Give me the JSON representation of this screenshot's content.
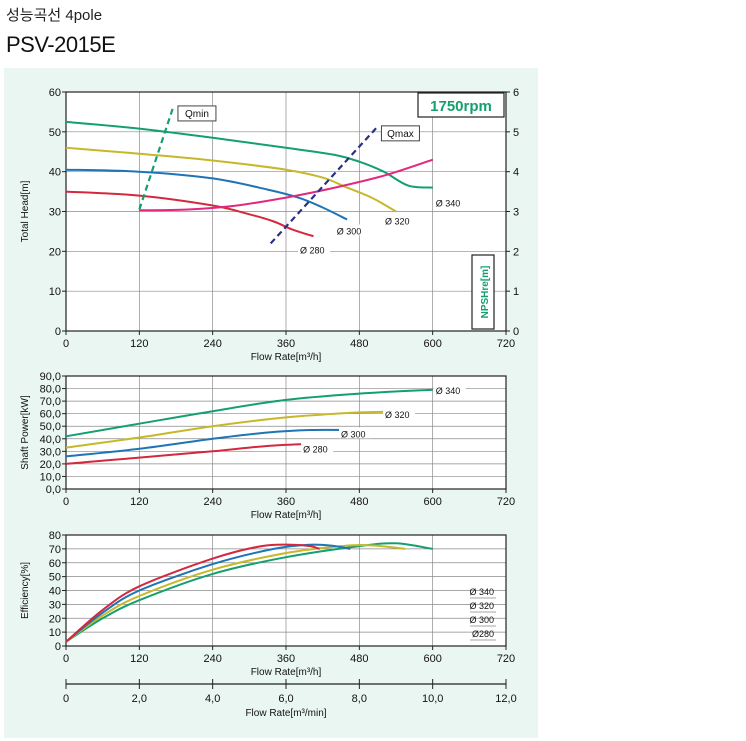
{
  "header": {
    "title": "성능곡선 4pole",
    "model": "PSV-2015E"
  },
  "colors": {
    "d340": "#14a06e",
    "d320": "#c7b82b",
    "d300": "#1f74b6",
    "d280": "#d4283f",
    "npsh": "#e0287e",
    "qmin": "#14a06e",
    "qmax": "#2a2f86"
  },
  "chart_data": [
    {
      "id": "head",
      "type": "line",
      "ylabel": "Total Head[m]",
      "xlabel": "Flow Rate[m³/h]",
      "y2label": "NPSHre[m]",
      "speed_label": "1750rpm",
      "xlim": [
        0,
        720
      ],
      "xticks": [
        0,
        120,
        240,
        360,
        480,
        600,
        720
      ],
      "ylim": [
        0,
        60
      ],
      "yticks": [
        0,
        10,
        20,
        30,
        40,
        50,
        60
      ],
      "y2lim": [
        0,
        6
      ],
      "y2ticks": [
        0,
        1,
        2,
        3,
        4,
        5,
        6
      ],
      "grid": true,
      "series": [
        {
          "name": "Ø 340",
          "color_key": "d340",
          "x": [
            0,
            120,
            240,
            360,
            440,
            480,
            520,
            560,
            600
          ],
          "y": [
            52.5,
            50.8,
            48.5,
            46.0,
            44.2,
            42.5,
            40.0,
            36.5,
            36.0
          ]
        },
        {
          "name": "Ø 320",
          "color_key": "d320",
          "x": [
            0,
            120,
            240,
            360,
            420,
            460,
            500,
            540
          ],
          "y": [
            46.0,
            44.5,
            42.8,
            40.5,
            38.5,
            36.0,
            33.5,
            30.0
          ]
        },
        {
          "name": "Ø 300",
          "color_key": "d300",
          "x": [
            0,
            120,
            240,
            330,
            380,
            420,
            460
          ],
          "y": [
            40.5,
            40.0,
            38.3,
            35.5,
            33.5,
            31.0,
            28.0
          ]
        },
        {
          "name": "Ø 280",
          "color_key": "d280",
          "x": [
            0,
            120,
            240,
            300,
            340,
            370,
            405
          ],
          "y": [
            35.0,
            34.0,
            31.5,
            29.3,
            27.5,
            25.5,
            23.8
          ]
        }
      ],
      "npsh": {
        "name": "NPSHre",
        "color_key": "npsh",
        "x": [
          120,
          200,
          280,
          360,
          440,
          520,
          600
        ],
        "y": [
          3.03,
          3.05,
          3.15,
          3.35,
          3.6,
          3.9,
          4.3
        ]
      },
      "limits": [
        {
          "label": "Qmin",
          "color_key": "qmin",
          "x": [
            120,
            175
          ],
          "y": [
            30.5,
            56.0
          ]
        },
        {
          "label": "Qmax",
          "color_key": "qmax",
          "x": [
            335,
            508
          ],
          "y": [
            22.0,
            51.0
          ]
        }
      ],
      "curve_labels": [
        {
          "text": "Ø 340",
          "x": 605,
          "y": 32
        },
        {
          "text": "Ø 320",
          "x": 522,
          "y": 27.5
        },
        {
          "text": "Ø 300",
          "x": 443,
          "y": 25.0
        },
        {
          "text": "Ø 280",
          "x": 383,
          "y": 20.2
        }
      ]
    },
    {
      "id": "power",
      "type": "line",
      "ylabel": "Shaft Power[kW]",
      "xlabel": "Flow Rate[m³/h]",
      "xlim": [
        0,
        720
      ],
      "xticks": [
        0,
        120,
        240,
        360,
        480,
        600,
        720
      ],
      "ylim": [
        0,
        90
      ],
      "yticks": [
        "0,0",
        "10,0",
        "20,0",
        "30,0",
        "40,0",
        "50,0",
        "60,0",
        "70,0",
        "80,0",
        "90,0"
      ],
      "grid": true,
      "series": [
        {
          "name": "Ø 340",
          "color_key": "d340",
          "x": [
            0,
            120,
            240,
            360,
            480,
            600
          ],
          "y": [
            42,
            52,
            62,
            71,
            76,
            79
          ]
        },
        {
          "name": "Ø 320",
          "color_key": "d320",
          "x": [
            0,
            120,
            240,
            360,
            480,
            540
          ],
          "y": [
            33,
            41,
            50,
            57,
            61,
            61.5
          ]
        },
        {
          "name": "Ø 300",
          "color_key": "d300",
          "x": [
            0,
            120,
            240,
            330,
            400,
            470
          ],
          "y": [
            26,
            32,
            40,
            45,
            47,
            47
          ]
        },
        {
          "name": "Ø 280",
          "color_key": "d280",
          "x": [
            0,
            120,
            240,
            300,
            350,
            410
          ],
          "y": [
            20,
            25,
            30,
            33,
            35,
            36
          ]
        }
      ],
      "curve_labels": [
        {
          "text": "Ø 340",
          "x": 605,
          "y": 78
        },
        {
          "text": "Ø 320",
          "x": 522,
          "y": 59
        },
        {
          "text": "Ø 300",
          "x": 450,
          "y": 43.5
        },
        {
          "text": "Ø 280",
          "x": 388,
          "y": 31.5
        }
      ]
    },
    {
      "id": "efficiency",
      "type": "line",
      "ylabel": "Efficiency[%]",
      "xlabel": "Flow Rate[m³/h]",
      "xlim": [
        0,
        720
      ],
      "xticks": [
        0,
        120,
        240,
        360,
        480,
        600,
        720
      ],
      "ylim": [
        0,
        80
      ],
      "yticks": [
        0,
        10,
        20,
        30,
        40,
        50,
        60,
        70,
        80
      ],
      "grid": true,
      "series": [
        {
          "name": "Ø 340",
          "color_key": "d340",
          "x": [
            0,
            60,
            120,
            240,
            360,
            480,
            540,
            600
          ],
          "y": [
            3,
            20,
            33,
            52,
            64,
            72,
            74,
            70
          ]
        },
        {
          "name": "Ø 320",
          "color_key": "d320",
          "x": [
            0,
            60,
            120,
            240,
            360,
            450,
            500,
            555
          ],
          "y": [
            3,
            22,
            36,
            55,
            67,
            72,
            72.5,
            70
          ]
        },
        {
          "name": "Ø 300",
          "color_key": "d300",
          "x": [
            0,
            60,
            120,
            240,
            340,
            400,
            440,
            465
          ],
          "y": [
            3,
            24,
            40,
            59,
            70,
            73,
            72,
            70
          ]
        },
        {
          "name": "Ø 280",
          "color_key": "d280",
          "x": [
            0,
            60,
            120,
            240,
            320,
            370,
            400,
            415
          ],
          "y": [
            3,
            26,
            43,
            63,
            72,
            73,
            72,
            70
          ]
        }
      ],
      "legend": [
        "Ø 340",
        "Ø 320",
        "Ø 300",
        "Ø280"
      ]
    },
    {
      "id": "flow-axis-min",
      "type": "axis",
      "xlabel": "Flow Rate[m³/min]",
      "xlim": [
        0,
        12
      ],
      "xticks": [
        "0",
        "2,0",
        "4,0",
        "6,0",
        "8,0",
        "10,0",
        "12,0"
      ]
    }
  ]
}
